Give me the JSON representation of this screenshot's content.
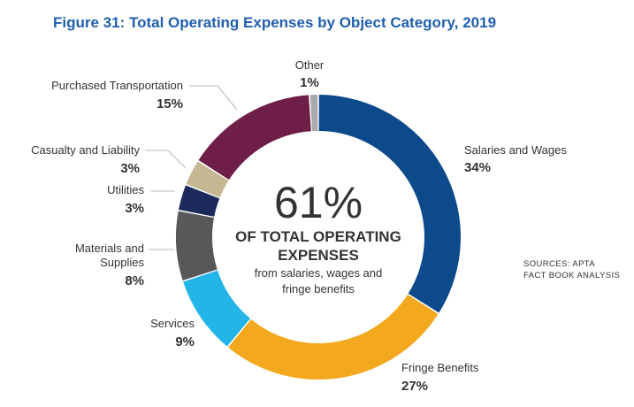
{
  "title": "Figure 31:  Total Operating Expenses by Object Category, 2019",
  "center": {
    "percent": "61%",
    "line1": "OF TOTAL OPERATING",
    "line2": "EXPENSES",
    "line3": "from salaries, wages and",
    "line4": "fringe benefits"
  },
  "sources": [
    "SOURCES: APTA",
    "FACT BOOK ANALYSIS"
  ],
  "chart_data": {
    "type": "pie",
    "title": "Figure 31:  Total Operating Expenses by Object Category, 2019",
    "slices": [
      {
        "name": "Salaries and Wages",
        "label_lines": [
          "Salaries and Wages"
        ],
        "value": 34,
        "value_label": "34%",
        "color": "#0d4a8c"
      },
      {
        "name": "Fringe Benefits",
        "label_lines": [
          "Fringe Benefits"
        ],
        "value": 27,
        "value_label": "27%",
        "color": "#f4a81d"
      },
      {
        "name": "Services",
        "label_lines": [
          "Services"
        ],
        "value": 9,
        "value_label": "9%",
        "color": "#23b5e8"
      },
      {
        "name": "Materials and Supplies",
        "label_lines": [
          "Materials and",
          "Supplies"
        ],
        "value": 8,
        "value_label": "8%",
        "color": "#58585b"
      },
      {
        "name": "Utilities",
        "label_lines": [
          "Utilities"
        ],
        "value": 3,
        "value_label": "3%",
        "color": "#1b2a5a"
      },
      {
        "name": "Casualty and Liability",
        "label_lines": [
          "Casualty and Liability"
        ],
        "value": 3,
        "value_label": "3%",
        "color": "#c4b792"
      },
      {
        "name": "Purchased Transportation",
        "label_lines": [
          "Purchased Transportation"
        ],
        "value": 15,
        "value_label": "15%",
        "color": "#6e1e47"
      },
      {
        "name": "Other",
        "label_lines": [
          "Other"
        ],
        "value": 1,
        "value_label": "1%",
        "color": "#a7a9ac"
      }
    ]
  }
}
